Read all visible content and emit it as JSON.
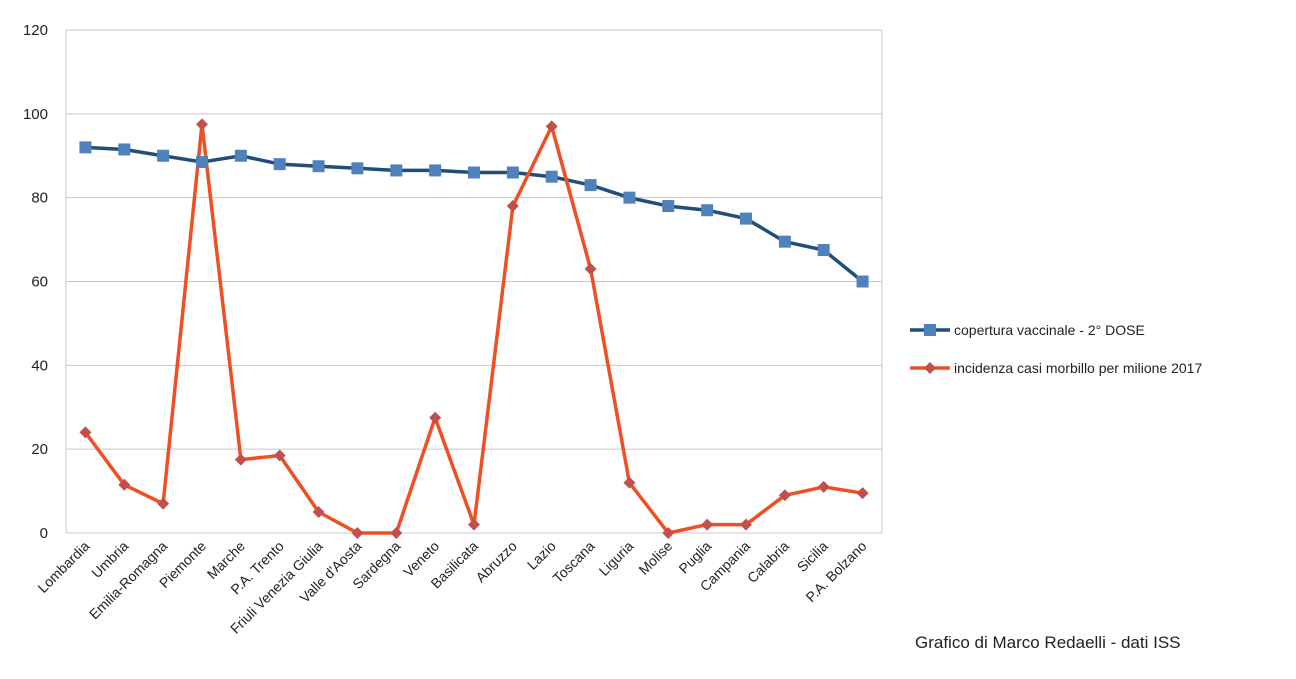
{
  "chart_data": {
    "type": "line",
    "categories": [
      "Lombardia",
      "Umbria",
      "Emilia-Romagna",
      "Piemonte",
      "Marche",
      "P.A. Trento",
      "Friuli Venezia Giulia",
      "Valle d'Aosta",
      "Sardegna",
      "Veneto",
      "Basilicata",
      "Abruzzo",
      "Lazio",
      "Toscana",
      "Liguria",
      "Molise",
      "Puglia",
      "Campania",
      "Calabria",
      "Sicilia",
      "P.A. Bolzano"
    ],
    "series": [
      {
        "name": "copertura vaccinale - 2° DOSE",
        "color": "#1f4e79",
        "marker": "square",
        "values": [
          92,
          91.5,
          90,
          88.5,
          90,
          88,
          87.5,
          87,
          86.5,
          86.5,
          86,
          86,
          85,
          83,
          80,
          78,
          77,
          75,
          69.5,
          67.5,
          60
        ]
      },
      {
        "name": "incidenza casi morbillo  per milione 2017",
        "color": "#f04e23",
        "marker": "diamond",
        "values": [
          24,
          11.5,
          7,
          97.5,
          17.5,
          18.5,
          5,
          0,
          0,
          27.5,
          2,
          78,
          97,
          63,
          12,
          0,
          2,
          2,
          9,
          11,
          9.5
        ]
      }
    ],
    "yticks": [
      0,
      20,
      40,
      60,
      80,
      100,
      120
    ],
    "ylim": [
      0,
      120
    ],
    "grid": true,
    "legend": "right",
    "title": "",
    "xlabel": "",
    "ylabel": ""
  },
  "credit": "Grafico di Marco Redaelli - dati ISS"
}
